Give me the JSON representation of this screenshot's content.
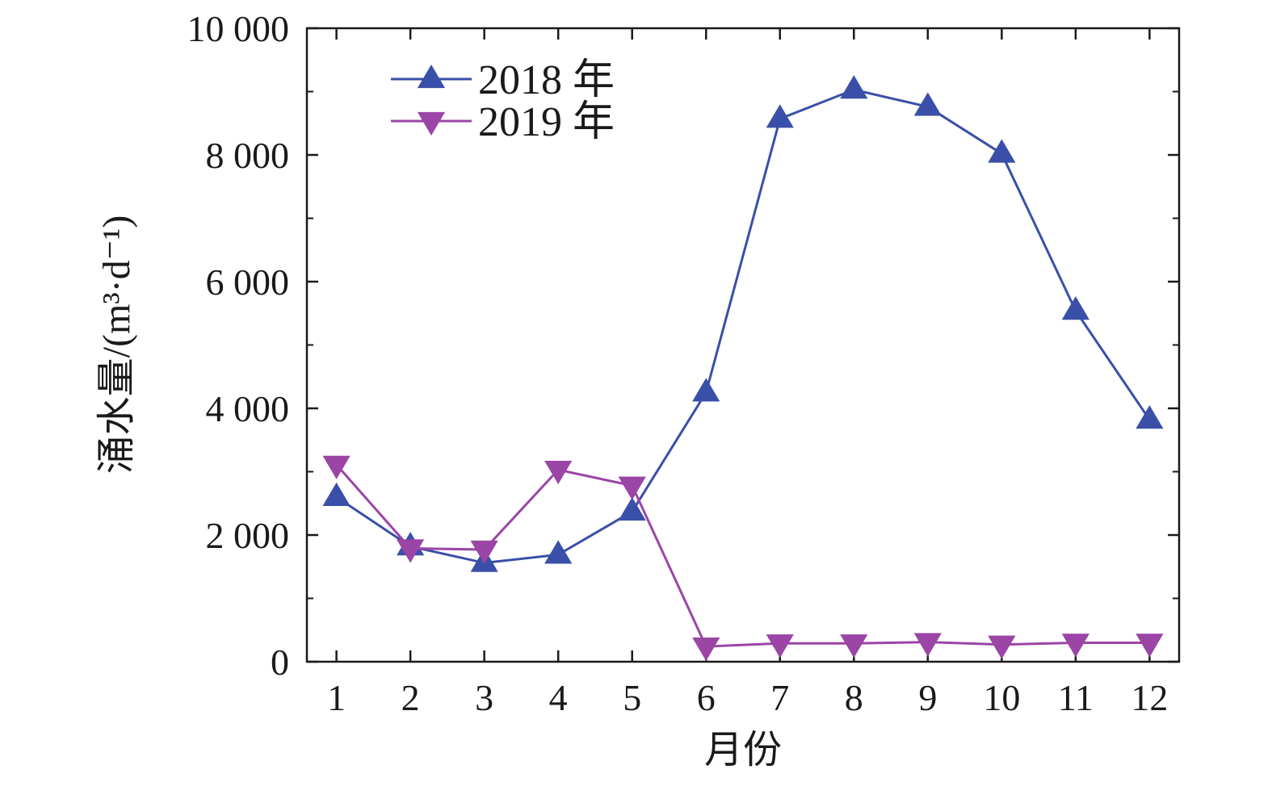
{
  "chart_data": {
    "type": "line",
    "xlabel": "月份",
    "ylabel": "涌水量/(m³·d⁻¹)",
    "x": [
      1,
      2,
      3,
      4,
      5,
      6,
      7,
      8,
      9,
      10,
      11,
      12
    ],
    "x_tick_labels": [
      "1",
      "2",
      "3",
      "4",
      "5",
      "6",
      "7",
      "8",
      "9",
      "10",
      "11",
      "12"
    ],
    "xlim": [
      0.6,
      12.4
    ],
    "ylim": [
      0,
      10000
    ],
    "y_ticks": [
      0,
      2000,
      4000,
      6000,
      8000,
      10000
    ],
    "y_tick_labels": [
      "0",
      "2 000",
      "4 000",
      "6 000",
      "8 000",
      "10 000"
    ],
    "grid": false,
    "legend_position": "top-left",
    "series": [
      {
        "name": "2018 年",
        "marker": "triangle-up",
        "color": "#3a4fa8",
        "values": [
          2600,
          1820,
          1560,
          1690,
          2370,
          4250,
          8570,
          9030,
          8760,
          8020,
          5540,
          3820
        ]
      },
      {
        "name": "2019 年",
        "marker": "triangle-down",
        "color": "#9b45a6",
        "values": [
          3110,
          1790,
          1770,
          3030,
          2780,
          240,
          290,
          290,
          310,
          270,
          300,
          300
        ]
      }
    ]
  }
}
